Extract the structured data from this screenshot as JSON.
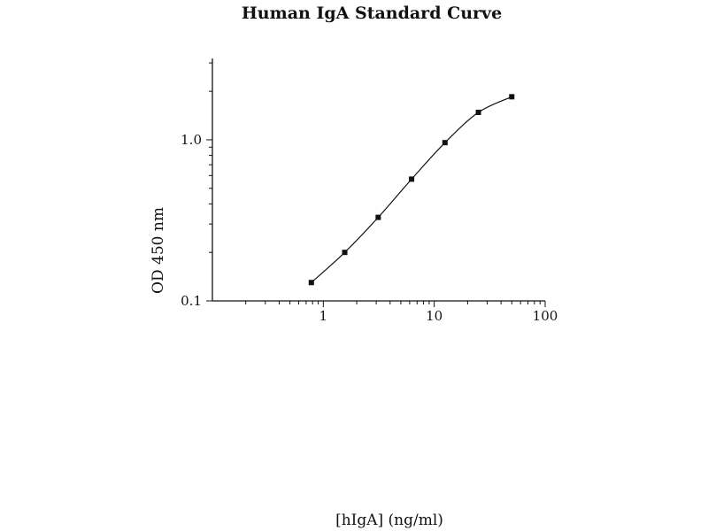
{
  "chart_data": {
    "type": "line",
    "title": "Human IgA Standard Curve",
    "xlabel": "[hIgA] (ng/ml)",
    "ylabel": "OD 450 nm",
    "x_scale": "log",
    "y_scale": "log",
    "xlim": [
      0.1,
      100
    ],
    "ylim": [
      0.1,
      3.2
    ],
    "x_ticks": [
      1,
      10,
      100
    ],
    "x_tick_labels": [
      "1",
      "10",
      "100"
    ],
    "y_ticks": [
      0.1,
      1.0
    ],
    "y_tick_labels": [
      "0.1",
      "1.0"
    ],
    "grid": false,
    "series": [
      {
        "x": [
          0.78,
          1.56,
          3.125,
          6.25,
          12.5,
          25,
          50
        ],
        "y": [
          0.13,
          0.2,
          0.33,
          0.57,
          0.96,
          1.48,
          1.85
        ]
      }
    ]
  }
}
